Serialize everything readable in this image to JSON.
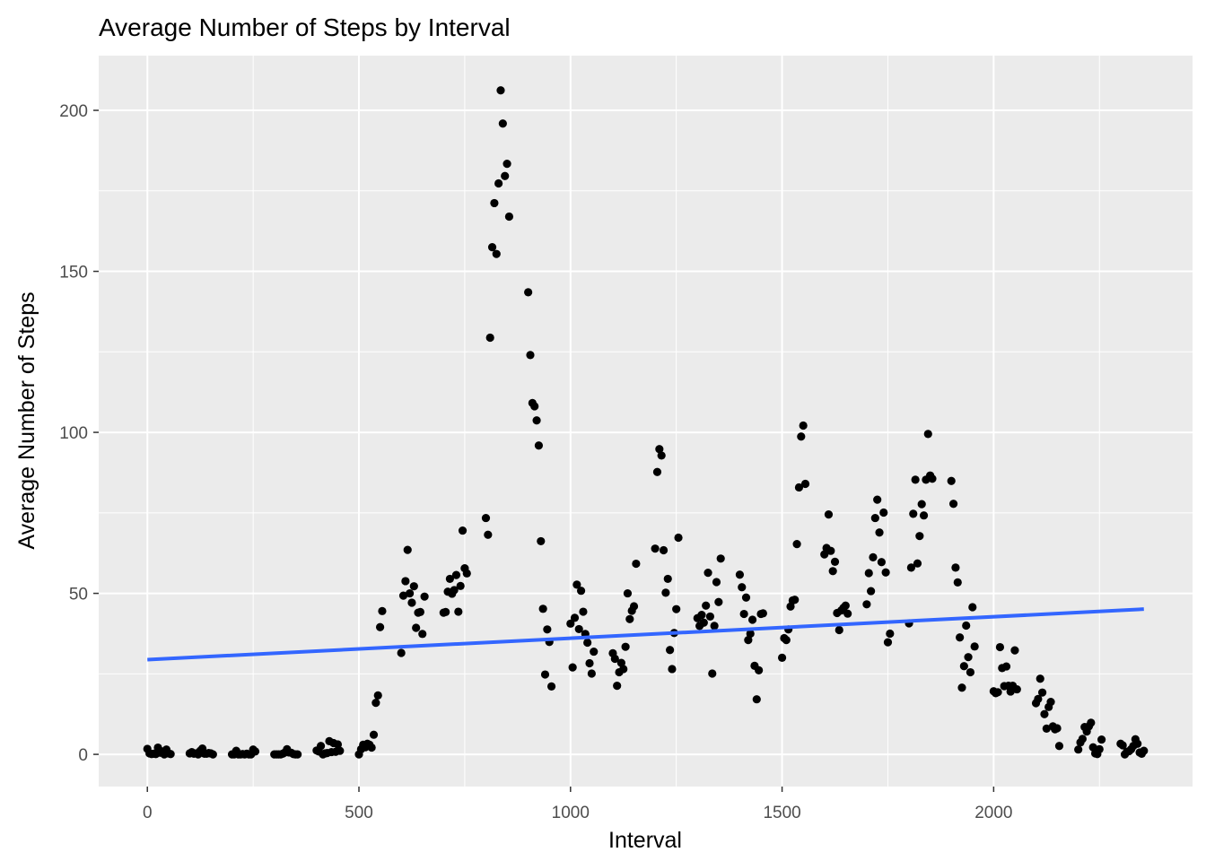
{
  "chart_data": {
    "type": "scatter",
    "title": "Average Number of Steps by Interval",
    "xlabel": "Interval",
    "ylabel": "Average Number of Steps",
    "xlim": [
      -115,
      2470
    ],
    "ylim": [
      -10,
      217
    ],
    "xticks": [
      0,
      500,
      1000,
      1500,
      2000
    ],
    "yticks": [
      0,
      50,
      100,
      150,
      200
    ],
    "grid": true,
    "legend": "none",
    "colors": {
      "panel": "#ebebeb",
      "grid": "#ffffff",
      "point": "#000000",
      "trend": "#3366ff",
      "tick": "#4d4d4d"
    },
    "trend_line": {
      "x": [
        0,
        2355
      ],
      "y": [
        29.4,
        45.1
      ]
    },
    "points": [
      [
        0,
        1.7
      ],
      [
        5,
        0.3
      ],
      [
        10,
        0.1
      ],
      [
        15,
        0.2
      ],
      [
        20,
        0.1
      ],
      [
        25,
        2.1
      ],
      [
        30,
        0.5
      ],
      [
        35,
        0.9
      ],
      [
        40,
        0
      ],
      [
        45,
        1.5
      ],
      [
        50,
        0.3
      ],
      [
        55,
        0.1
      ],
      [
        100,
        0.3
      ],
      [
        105,
        0.7
      ],
      [
        110,
        0.2
      ],
      [
        115,
        0.3
      ],
      [
        120,
        0
      ],
      [
        125,
        1.1
      ],
      [
        130,
        1.8
      ],
      [
        135,
        0.2
      ],
      [
        140,
        0.2
      ],
      [
        145,
        0.4
      ],
      [
        150,
        0.3
      ],
      [
        155,
        0
      ],
      [
        200,
        0
      ],
      [
        205,
        0
      ],
      [
        210,
        1.1
      ],
      [
        215,
        0
      ],
      [
        220,
        0
      ],
      [
        225,
        0.1
      ],
      [
        230,
        0
      ],
      [
        235,
        0.2
      ],
      [
        240,
        0
      ],
      [
        245,
        0
      ],
      [
        250,
        1.5
      ],
      [
        255,
        0.9
      ],
      [
        300,
        0
      ],
      [
        305,
        0
      ],
      [
        310,
        0
      ],
      [
        315,
        0
      ],
      [
        320,
        0.2
      ],
      [
        325,
        0.6
      ],
      [
        330,
        1.6
      ],
      [
        335,
        0.6
      ],
      [
        340,
        0.5
      ],
      [
        345,
        0.1
      ],
      [
        350,
        0
      ],
      [
        355,
        0
      ],
      [
        400,
        1.2
      ],
      [
        405,
        0.9
      ],
      [
        410,
        2.6
      ],
      [
        415,
        0
      ],
      [
        420,
        0.3
      ],
      [
        425,
        0.4
      ],
      [
        430,
        4.1
      ],
      [
        435,
        0.7
      ],
      [
        440,
        3.5
      ],
      [
        445,
        0.8
      ],
      [
        450,
        3.1
      ],
      [
        455,
        1.1
      ],
      [
        500,
        0
      ],
      [
        505,
        1.6
      ],
      [
        510,
        3
      ],
      [
        515,
        2.2
      ],
      [
        520,
        3.3
      ],
      [
        525,
        3
      ],
      [
        530,
        2.1
      ],
      [
        535,
        6.1
      ],
      [
        540,
        16
      ],
      [
        545,
        18.3
      ],
      [
        550,
        39.5
      ],
      [
        555,
        44.5
      ],
      [
        600,
        31.5
      ],
      [
        605,
        49.3
      ],
      [
        610,
        53.8
      ],
      [
        615,
        63.5
      ],
      [
        620,
        50
      ],
      [
        625,
        47.1
      ],
      [
        630,
        52.2
      ],
      [
        635,
        39.3
      ],
      [
        640,
        44
      ],
      [
        645,
        44.2
      ],
      [
        650,
        37.4
      ],
      [
        655,
        49
      ],
      [
        700,
        44
      ],
      [
        705,
        44.2
      ],
      [
        710,
        50.5
      ],
      [
        715,
        54.5
      ],
      [
        720,
        49.9
      ],
      [
        725,
        51
      ],
      [
        730,
        55.7
      ],
      [
        735,
        44.3
      ],
      [
        740,
        52.3
      ],
      [
        745,
        69.5
      ],
      [
        750,
        57.8
      ],
      [
        755,
        56.2
      ],
      [
        800,
        73.4
      ],
      [
        805,
        68.2
      ],
      [
        810,
        129.4
      ],
      [
        815,
        157.5
      ],
      [
        820,
        171.2
      ],
      [
        825,
        155.4
      ],
      [
        830,
        177.3
      ],
      [
        835,
        206.2
      ],
      [
        840,
        195.9
      ],
      [
        845,
        179.6
      ],
      [
        850,
        183.4
      ],
      [
        855,
        167
      ],
      [
        900,
        143.5
      ],
      [
        905,
        124
      ],
      [
        910,
        109.1
      ],
      [
        915,
        108.1
      ],
      [
        920,
        103.7
      ],
      [
        925,
        95.9
      ],
      [
        930,
        66.2
      ],
      [
        935,
        45.2
      ],
      [
        940,
        24.8
      ],
      [
        945,
        38.8
      ],
      [
        950,
        34.9
      ],
      [
        955,
        21.1
      ],
      [
        1000,
        40.6
      ],
      [
        1005,
        27
      ],
      [
        1010,
        42.4
      ],
      [
        1015,
        52.7
      ],
      [
        1020,
        38.9
      ],
      [
        1025,
        50.8
      ],
      [
        1030,
        44.3
      ],
      [
        1035,
        37.4
      ],
      [
        1040,
        34.7
      ],
      [
        1045,
        28.3
      ],
      [
        1050,
        25.1
      ],
      [
        1055,
        31.9
      ],
      [
        1100,
        31.4
      ],
      [
        1105,
        29.7
      ],
      [
        1110,
        21.3
      ],
      [
        1115,
        25.5
      ],
      [
        1120,
        28.4
      ],
      [
        1125,
        26.5
      ],
      [
        1130,
        33.4
      ],
      [
        1135,
        50
      ],
      [
        1140,
        42
      ],
      [
        1145,
        44.6
      ],
      [
        1150,
        46
      ],
      [
        1155,
        59.2
      ],
      [
        1200,
        63.9
      ],
      [
        1205,
        87.7
      ],
      [
        1210,
        94.8
      ],
      [
        1215,
        92.8
      ],
      [
        1220,
        63.4
      ],
      [
        1225,
        50.2
      ],
      [
        1230,
        54.5
      ],
      [
        1235,
        32.4
      ],
      [
        1240,
        26.5
      ],
      [
        1245,
        37.7
      ],
      [
        1250,
        45.1
      ],
      [
        1255,
        67.3
      ],
      [
        1300,
        42.3
      ],
      [
        1305,
        39.9
      ],
      [
        1310,
        43.3
      ],
      [
        1315,
        40.9
      ],
      [
        1320,
        46.2
      ],
      [
        1325,
        56.4
      ],
      [
        1330,
        42.8
      ],
      [
        1335,
        25.1
      ],
      [
        1340,
        39.9
      ],
      [
        1345,
        53.5
      ],
      [
        1350,
        47.3
      ],
      [
        1355,
        60.8
      ],
      [
        1400,
        55.8
      ],
      [
        1405,
        51.9
      ],
      [
        1410,
        43.6
      ],
      [
        1415,
        48.7
      ],
      [
        1420,
        35.5
      ],
      [
        1425,
        37.5
      ],
      [
        1430,
        41.8
      ],
      [
        1435,
        27.5
      ],
      [
        1440,
        17.1
      ],
      [
        1445,
        26.1
      ],
      [
        1450,
        43.6
      ],
      [
        1455,
        43.8
      ],
      [
        1500,
        30
      ],
      [
        1505,
        36.1
      ],
      [
        1510,
        35.5
      ],
      [
        1515,
        38.8
      ],
      [
        1520,
        45.9
      ],
      [
        1525,
        47.8
      ],
      [
        1530,
        48
      ],
      [
        1535,
        65.3
      ],
      [
        1540,
        82.9
      ],
      [
        1545,
        98.7
      ],
      [
        1550,
        102.1
      ],
      [
        1555,
        84
      ],
      [
        1600,
        62.1
      ],
      [
        1605,
        64.1
      ],
      [
        1610,
        74.5
      ],
      [
        1615,
        63.2
      ],
      [
        1620,
        56.9
      ],
      [
        1625,
        59.8
      ],
      [
        1630,
        43.9
      ],
      [
        1635,
        38.6
      ],
      [
        1640,
        44.7
      ],
      [
        1645,
        45.5
      ],
      [
        1650,
        46.2
      ],
      [
        1655,
        43.7
      ],
      [
        1700,
        46.6
      ],
      [
        1705,
        56.3
      ],
      [
        1710,
        50.7
      ],
      [
        1715,
        61.2
      ],
      [
        1720,
        73.4
      ],
      [
        1725,
        79.1
      ],
      [
        1730,
        68.9
      ],
      [
        1735,
        59.7
      ],
      [
        1740,
        75.1
      ],
      [
        1745,
        56.5
      ],
      [
        1750,
        34.8
      ],
      [
        1755,
        37.5
      ],
      [
        1800,
        40.7
      ],
      [
        1805,
        58
      ],
      [
        1810,
        74.7
      ],
      [
        1815,
        85.3
      ],
      [
        1820,
        59.3
      ],
      [
        1825,
        67.8
      ],
      [
        1830,
        77.7
      ],
      [
        1835,
        74.2
      ],
      [
        1840,
        85.3
      ],
      [
        1845,
        99.5
      ],
      [
        1850,
        86.6
      ],
      [
        1855,
        85.6
      ],
      [
        1900,
        84.9
      ],
      [
        1905,
        77.8
      ],
      [
        1910,
        58
      ],
      [
        1915,
        53.4
      ],
      [
        1920,
        36.3
      ],
      [
        1925,
        20.7
      ],
      [
        1930,
        27.4
      ],
      [
        1935,
        40
      ],
      [
        1940,
        30.2
      ],
      [
        1945,
        25.5
      ],
      [
        1950,
        45.7
      ],
      [
        1955,
        33.5
      ],
      [
        2000,
        19.6
      ],
      [
        2005,
        19
      ],
      [
        2010,
        19.3
      ],
      [
        2015,
        33.3
      ],
      [
        2020,
        26.8
      ],
      [
        2025,
        21.2
      ],
      [
        2030,
        27.3
      ],
      [
        2035,
        21.3
      ],
      [
        2040,
        19.5
      ],
      [
        2045,
        21.3
      ],
      [
        2050,
        32.3
      ],
      [
        2055,
        20.2
      ],
      [
        2100,
        15.9
      ],
      [
        2105,
        17.2
      ],
      [
        2110,
        23.5
      ],
      [
        2115,
        19.2
      ],
      [
        2120,
        12.5
      ],
      [
        2125,
        8
      ],
      [
        2130,
        14.7
      ],
      [
        2135,
        16.3
      ],
      [
        2140,
        8.7
      ],
      [
        2145,
        7.8
      ],
      [
        2150,
        8.1
      ],
      [
        2155,
        2.6
      ],
      [
        2200,
        1.5
      ],
      [
        2205,
        3.7
      ],
      [
        2210,
        4.8
      ],
      [
        2215,
        8.5
      ],
      [
        2220,
        7.1
      ],
      [
        2225,
        8.7
      ],
      [
        2230,
        9.8
      ],
      [
        2235,
        2.2
      ],
      [
        2240,
        0.3
      ],
      [
        2245,
        0.1
      ],
      [
        2250,
        1.6
      ],
      [
        2255,
        4.6
      ],
      [
        2300,
        3.3
      ],
      [
        2305,
        2.8
      ],
      [
        2310,
        0
      ],
      [
        2315,
        0.8
      ],
      [
        2320,
        1
      ],
      [
        2325,
        1.6
      ],
      [
        2330,
        2.6
      ],
      [
        2335,
        4.7
      ],
      [
        2340,
        3.3
      ],
      [
        2345,
        0.6
      ],
      [
        2350,
        0.2
      ],
      [
        2355,
        1.1
      ]
    ]
  }
}
